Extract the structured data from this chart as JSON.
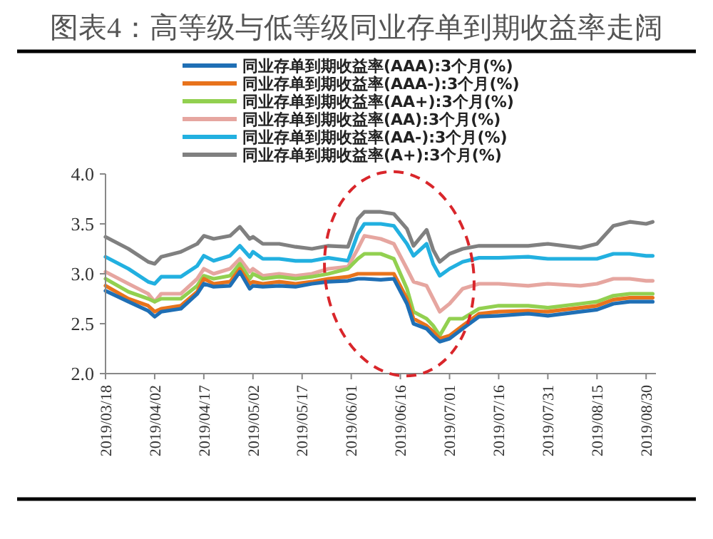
{
  "chart_data": {
    "type": "line",
    "title": "图表4：高等级与低等级同业存单到期收益率走阔",
    "x": [
      "2019-03-18",
      "2019-03-25",
      "2019-03-31",
      "2019-04-02",
      "2019-04-04",
      "2019-04-10",
      "2019-04-15",
      "2019-04-17",
      "2019-04-20",
      "2019-04-25",
      "2019-04-28",
      "2019-05-01",
      "2019-05-02",
      "2019-05-05",
      "2019-05-10",
      "2019-05-15",
      "2019-05-20",
      "2019-05-25",
      "2019-05-31",
      "2019-06-03",
      "2019-06-05",
      "2019-06-10",
      "2019-06-14",
      "2019-06-18",
      "2019-06-20",
      "2019-06-24",
      "2019-06-26",
      "2019-06-28",
      "2019-07-01",
      "2019-07-05",
      "2019-07-10",
      "2019-07-16",
      "2019-07-25",
      "2019-07-31",
      "2019-08-10",
      "2019-08-15",
      "2019-08-20",
      "2019-08-25",
      "2019-08-30",
      "2019-09-01"
    ],
    "series": [
      {
        "name": "同业存单到期收益率(AAA):3个月(%)",
        "color": "#1f6fb5",
        "values": [
          2.83,
          2.72,
          2.63,
          2.57,
          2.62,
          2.65,
          2.8,
          2.9,
          2.87,
          2.88,
          3.02,
          2.85,
          2.88,
          2.87,
          2.88,
          2.87,
          2.9,
          2.92,
          2.93,
          2.95,
          2.95,
          2.94,
          2.95,
          2.7,
          2.5,
          2.45,
          2.38,
          2.32,
          2.35,
          2.45,
          2.57,
          2.58,
          2.6,
          2.58,
          2.62,
          2.64,
          2.7,
          2.72,
          2.72,
          2.72
        ]
      },
      {
        "name": "同业存单到期收益率(AAA-):3个月(%)",
        "color": "#e8731c",
        "values": [
          2.88,
          2.75,
          2.68,
          2.62,
          2.65,
          2.68,
          2.82,
          2.95,
          2.9,
          2.92,
          3.05,
          2.9,
          2.92,
          2.9,
          2.92,
          2.9,
          2.92,
          2.95,
          2.97,
          3.0,
          3.0,
          3.0,
          3.0,
          2.75,
          2.55,
          2.48,
          2.42,
          2.35,
          2.38,
          2.48,
          2.6,
          2.62,
          2.63,
          2.62,
          2.66,
          2.68,
          2.74,
          2.76,
          2.76,
          2.76
        ]
      },
      {
        "name": "同业存单到期收益率(AA+):3个月(%)",
        "color": "#92d050",
        "values": [
          2.95,
          2.82,
          2.75,
          2.72,
          2.75,
          2.75,
          2.88,
          2.98,
          2.95,
          2.98,
          3.1,
          2.95,
          3.0,
          2.95,
          2.97,
          2.95,
          2.97,
          3.0,
          3.05,
          3.15,
          3.2,
          3.2,
          3.15,
          2.85,
          2.62,
          2.55,
          2.48,
          2.38,
          2.55,
          2.55,
          2.65,
          2.68,
          2.68,
          2.66,
          2.7,
          2.72,
          2.78,
          2.8,
          2.8,
          2.8
        ]
      },
      {
        "name": "同业存单到期收益率(AA):3个月(%)",
        "color": "#e6a6a0",
        "values": [
          3.02,
          2.9,
          2.8,
          2.72,
          2.8,
          2.8,
          2.95,
          3.05,
          3.0,
          3.05,
          3.15,
          3.02,
          3.05,
          2.98,
          3.0,
          2.98,
          3.0,
          3.05,
          3.07,
          3.25,
          3.38,
          3.35,
          3.3,
          3.05,
          2.92,
          2.88,
          2.75,
          2.62,
          2.7,
          2.85,
          2.9,
          2.9,
          2.88,
          2.9,
          2.88,
          2.9,
          2.95,
          2.95,
          2.93,
          2.93
        ]
      },
      {
        "name": "同业存单到期收益率(AA-):3个月(%)",
        "color": "#22b0e0",
        "values": [
          3.17,
          3.05,
          2.92,
          2.9,
          2.97,
          2.97,
          3.08,
          3.18,
          3.13,
          3.18,
          3.28,
          3.17,
          3.22,
          3.15,
          3.15,
          3.13,
          3.13,
          3.16,
          3.13,
          3.4,
          3.5,
          3.5,
          3.48,
          3.3,
          3.18,
          3.3,
          3.1,
          2.98,
          3.05,
          3.12,
          3.16,
          3.16,
          3.17,
          3.15,
          3.15,
          3.15,
          3.2,
          3.2,
          3.18,
          3.18
        ]
      },
      {
        "name": "同业存单到期收益率(A+):3个月(%)",
        "color": "#808080",
        "values": [
          3.37,
          3.25,
          3.12,
          3.1,
          3.17,
          3.22,
          3.3,
          3.38,
          3.35,
          3.38,
          3.47,
          3.35,
          3.37,
          3.3,
          3.3,
          3.27,
          3.25,
          3.28,
          3.27,
          3.55,
          3.62,
          3.62,
          3.6,
          3.45,
          3.28,
          3.44,
          3.24,
          3.12,
          3.2,
          3.25,
          3.28,
          3.28,
          3.28,
          3.3,
          3.26,
          3.3,
          3.48,
          3.52,
          3.5,
          3.52
        ]
      }
    ],
    "xlim": [
      "2019-03-18",
      "2019-09-02"
    ],
    "xticks": [
      {
        "value": "2019-03-18",
        "label": "2019/03/18"
      },
      {
        "value": "2019-04-02",
        "label": "2019/04/02"
      },
      {
        "value": "2019-04-17",
        "label": "2019/04/17"
      },
      {
        "value": "2019-05-02",
        "label": "2019/05/02"
      },
      {
        "value": "2019-05-17",
        "label": "2019/05/17"
      },
      {
        "value": "2019-06-01",
        "label": "2019/06/01"
      },
      {
        "value": "2019-06-16",
        "label": "2019/06/16"
      },
      {
        "value": "2019-07-01",
        "label": "2019/07/01"
      },
      {
        "value": "2019-07-16",
        "label": "2019/07/16"
      },
      {
        "value": "2019-07-31",
        "label": "2019/07/31"
      },
      {
        "value": "2019-08-15",
        "label": "2019/08/15"
      },
      {
        "value": "2019-08-30",
        "label": "2019/08/30"
      }
    ],
    "ylim": [
      2.0,
      4.0
    ],
    "yticks": [
      {
        "value": 2.0,
        "label": "2.0"
      },
      {
        "value": 2.5,
        "label": "2.5"
      },
      {
        "value": 3.0,
        "label": "3.0"
      },
      {
        "value": 3.5,
        "label": "3.5"
      },
      {
        "value": 4.0,
        "label": "4.0"
      }
    ],
    "legend": "top",
    "grid": false,
    "marker": "none",
    "line_style": "solid"
  }
}
